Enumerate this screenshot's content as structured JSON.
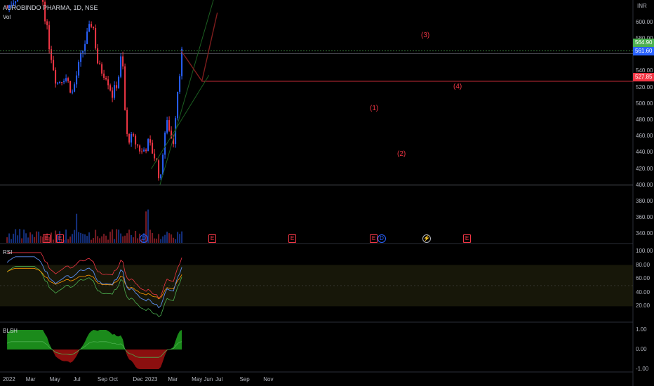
{
  "header": {
    "symbol": "AUROBINDO PHARMA, 1D, NSE",
    "volume_label": "Vol",
    "currency": "INR"
  },
  "colors": {
    "up": "#2962ff",
    "down": "#f23645",
    "price_badge": "#4caf50",
    "current_badge": "#2962ff",
    "target_badge": "#f23645"
  },
  "price_axis": {
    "ticks": [
      "600.00",
      "580.00",
      "540.00",
      "520.00",
      "500.00",
      "480.00",
      "460.00",
      "440.00",
      "420.00",
      "400.00",
      "380.00",
      "360.00",
      "340.00"
    ],
    "badges": {
      "price_564": "564.90",
      "price_561": "561.60",
      "price_527": "527.85"
    }
  },
  "time_axis": {
    "labels": [
      "2022",
      "Mar",
      "May",
      "Jul",
      "Sep",
      "Oct",
      "Dec",
      "2023",
      "Mar",
      "May",
      "Jun",
      "Jul",
      "Sep",
      "Nov"
    ]
  },
  "elliott_wave": {
    "labels": [
      "(1)",
      "(2)",
      "(3)",
      "(4)"
    ]
  },
  "rsi_pane": {
    "title": "RSI",
    "ticks": [
      "100.00",
      "80.00",
      "60.00",
      "40.00",
      "20.00"
    ]
  },
  "blsh_pane": {
    "title": "BLSH",
    "ticks": [
      "1.00",
      "0.00",
      "-1.00"
    ]
  },
  "markers": [
    "E",
    "E",
    "D",
    "E",
    "E",
    "E",
    "D",
    "E"
  ],
  "chart_data": {
    "type": "candlestick",
    "title": "AUROBINDO PHARMA, 1D, NSE",
    "ylabel": "INR",
    "ylim": [
      330,
      612
    ],
    "x_range": [
      "2022-01",
      "2023-11"
    ],
    "price_path": [
      {
        "date": "2022-01-03",
        "close": 618
      },
      {
        "date": "2022-02-01",
        "close": 635
      },
      {
        "date": "2022-03-01",
        "close": 650
      },
      {
        "date": "2022-04-01",
        "close": 640
      },
      {
        "date": "2022-04-20",
        "close": 575
      },
      {
        "date": "2022-05-10",
        "close": 525
      },
      {
        "date": "2022-06-01",
        "close": 535
      },
      {
        "date": "2022-06-20",
        "close": 513
      },
      {
        "date": "2022-07-10",
        "close": 555
      },
      {
        "date": "2022-07-25",
        "close": 580
      },
      {
        "date": "2022-08-10",
        "close": 603
      },
      {
        "date": "2022-08-25",
        "close": 545
      },
      {
        "date": "2022-09-15",
        "close": 535
      },
      {
        "date": "2022-10-01",
        "close": 510
      },
      {
        "date": "2022-10-15",
        "close": 530
      },
      {
        "date": "2022-10-25",
        "close": 565
      },
      {
        "date": "2022-11-05",
        "close": 460
      },
      {
        "date": "2022-11-25",
        "close": 455
      },
      {
        "date": "2022-12-15",
        "close": 440
      },
      {
        "date": "2023-01-01",
        "close": 452
      },
      {
        "date": "2023-01-20",
        "close": 432
      },
      {
        "date": "2023-02-01",
        "close": 403
      },
      {
        "date": "2023-02-10",
        "close": 462
      },
      {
        "date": "2023-02-20",
        "close": 478
      },
      {
        "date": "2023-03-05",
        "close": 448
      },
      {
        "date": "2023-03-15",
        "close": 510
      },
      {
        "date": "2023-03-28",
        "close": 564.9
      }
    ],
    "annotations": {
      "wave_points": [
        {
          "label": "(1)",
          "date": "2023-02-20",
          "price": 478
        },
        {
          "label": "(2)",
          "date": "2023-03-05",
          "price": 447
        },
        {
          "label": "(3)",
          "date": "2023-03-28",
          "price": 564.9
        },
        {
          "label": "(4)",
          "date": "2023-05-20",
          "price": 527.85
        }
      ],
      "horizontal_levels": [
        564.9,
        561.6,
        527.85
      ]
    },
    "rsi": {
      "bands": [
        20,
        80
      ],
      "last": 85
    },
    "blsh": {
      "range": [
        -1,
        1
      ],
      "last": 1
    }
  }
}
